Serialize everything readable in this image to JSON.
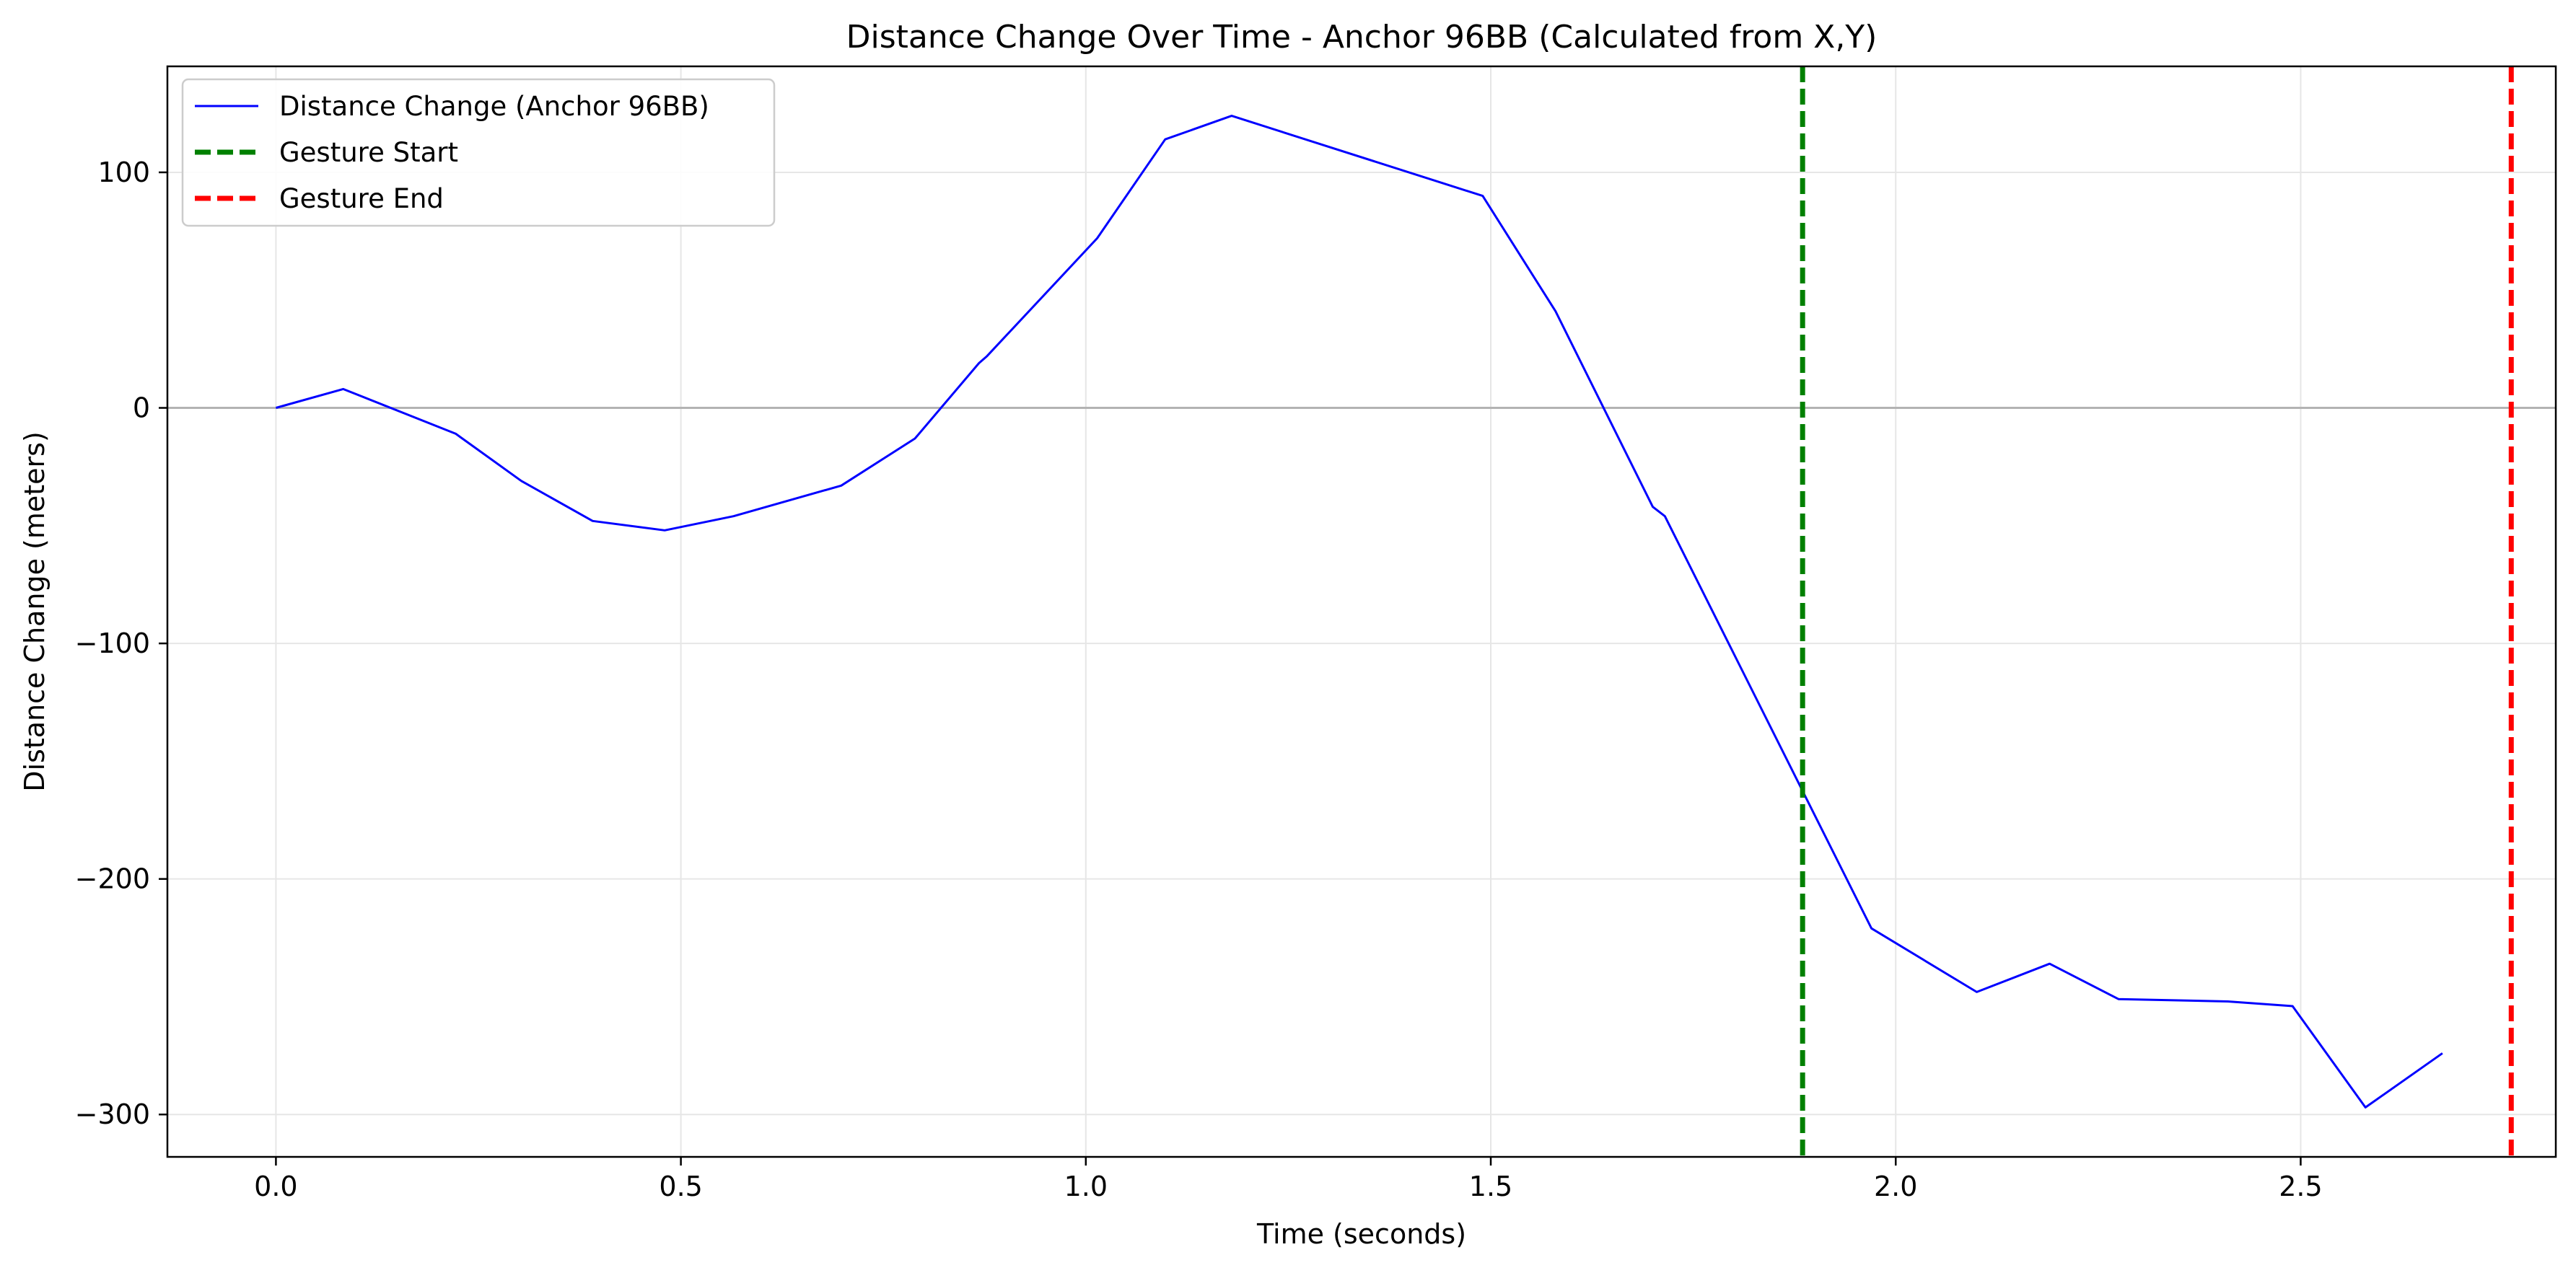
{
  "chart_data": {
    "type": "line",
    "title": "Distance Change Over Time - Anchor 96BB (Calculated from X,Y)",
    "xlabel": "Time (seconds)",
    "ylabel": "Distance Change (meters)",
    "xlim": [
      -0.134,
      2.815
    ],
    "ylim": [
      -318,
      145
    ],
    "xticks": [
      0.0,
      0.5,
      1.0,
      1.5,
      2.0,
      2.5
    ],
    "xtick_labels": [
      "0.0",
      "0.5",
      "1.0",
      "1.5",
      "2.0",
      "2.5"
    ],
    "yticks": [
      100,
      0,
      -100,
      -200,
      -300
    ],
    "ytick_labels": [
      "100",
      "0",
      "−100",
      "−200",
      "−300"
    ],
    "grid": true,
    "legend_position": "top-left",
    "series": [
      {
        "name": "Distance Change (Anchor 96BB)",
        "color": "#0000ff",
        "style": "solid",
        "x": [
          0.0,
          0.083,
          0.222,
          0.303,
          0.391,
          0.48,
          0.565,
          0.698,
          0.789,
          0.868,
          0.878,
          1.014,
          1.098,
          1.18,
          1.49,
          1.58,
          1.7,
          1.715,
          1.97,
          2.1,
          2.19,
          2.275,
          2.41,
          2.49,
          2.58,
          2.675
        ],
        "y": [
          0,
          8,
          -11,
          -31,
          -48,
          -52,
          -46,
          -33,
          -13,
          19,
          22,
          72,
          114,
          124,
          90,
          41,
          -42,
          -46,
          -221,
          -248,
          -236,
          -251,
          -252,
          -254,
          -297,
          -274
        ]
      }
    ],
    "vlines": [
      {
        "name": "Gesture Start",
        "x": 1.885,
        "color": "#008000",
        "style": "dashed"
      },
      {
        "name": "Gesture End",
        "x": 2.76,
        "color": "#ff0000",
        "style": "dashed"
      }
    ],
    "hlines": [
      {
        "y": 0,
        "color": "#b3b3b3"
      }
    ]
  }
}
